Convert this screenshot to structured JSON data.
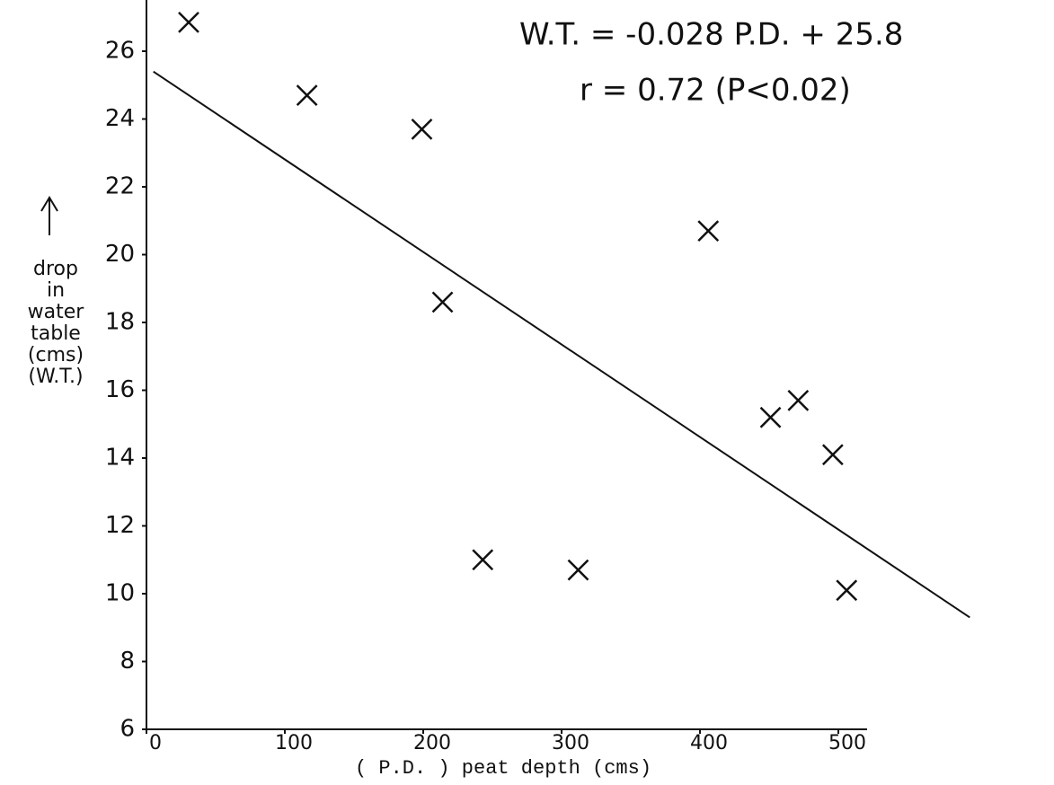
{
  "chart_data": {
    "type": "scatter",
    "x": [
      30.5,
      116,
      199,
      406,
      214,
      451,
      471,
      496,
      243,
      312,
      506
    ],
    "values": [
      26.85,
      24.7,
      23.7,
      20.7,
      18.6,
      15.2,
      15.7,
      14.1,
      11.0,
      10.7,
      10.1
    ],
    "color": "#111111",
    "trendline": {
      "x": [
        5,
        595
      ],
      "y": [
        25.4,
        9.3
      ]
    },
    "xlim": [
      0,
      600
    ],
    "ylim": [
      6,
      27.5
    ],
    "xticks": [
      0,
      100,
      200,
      300,
      400,
      500
    ],
    "yticks": [
      6,
      8,
      10,
      12,
      14,
      16,
      18,
      20,
      22,
      24,
      26
    ],
    "xlabel": "( P.D. )  peat depth  (cms)",
    "ylabel": [
      "drop",
      "in",
      "water",
      "table",
      "(cms)",
      "(W.T.)"
    ],
    "annotations": [
      "W.T. = -0.028 P.D. + 25.8",
      "r = 0.72  (P<0.02)"
    ]
  }
}
